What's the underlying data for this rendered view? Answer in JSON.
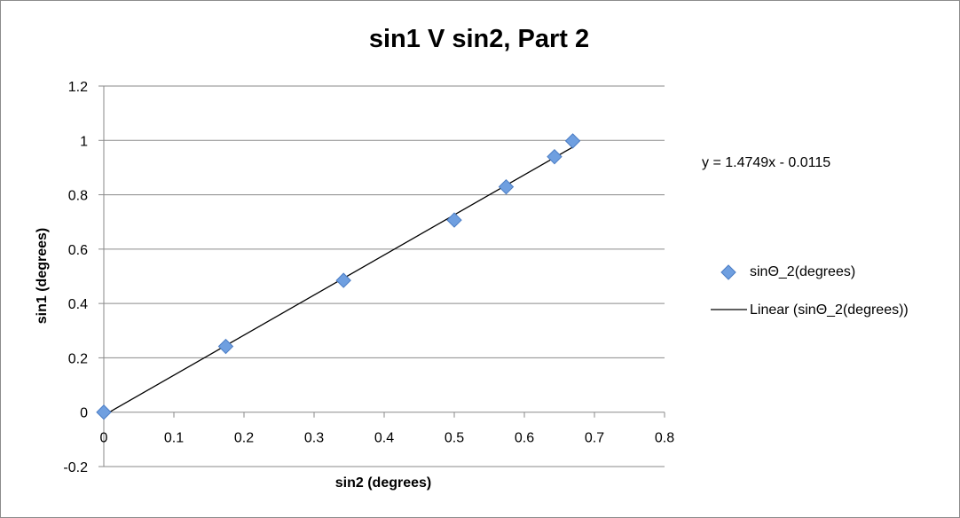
{
  "chart_data": {
    "type": "scatter",
    "title": "sin1 V sin2, Part 2",
    "xlabel": "sin2 (degrees)",
    "ylabel": "sin1 (degrees)",
    "xlim": [
      0,
      0.8
    ],
    "ylim": [
      -0.2,
      1.2
    ],
    "x_ticks": [
      "0",
      "0.1",
      "0.2",
      "0.3",
      "0.4",
      "0.5",
      "0.6",
      "0.7",
      "0.8"
    ],
    "y_ticks": [
      "-0.2",
      "0",
      "0.2",
      "0.4",
      "0.6",
      "0.8",
      "1",
      "1.2"
    ],
    "grid": "horizontal major gridlines",
    "series": [
      {
        "name": "sinΘ_2(degrees)",
        "color": "#6f9fe0",
        "marker": "diamond",
        "points": [
          {
            "x": 0,
            "y": 0
          },
          {
            "x": 0.174,
            "y": 0.242
          },
          {
            "x": 0.342,
            "y": 0.485
          },
          {
            "x": 0.5,
            "y": 0.707
          },
          {
            "x": 0.574,
            "y": 0.829
          },
          {
            "x": 0.643,
            "y": 0.94
          },
          {
            "x": 0.669,
            "y": 0.998
          }
        ]
      }
    ],
    "trendline": {
      "name": "Linear (sinΘ_2(degrees))",
      "slope": 1.4749,
      "intercept": -0.0115,
      "equation": "y = 1.4749x - 0.0115",
      "color": "#000000"
    },
    "legend_position": "right"
  }
}
